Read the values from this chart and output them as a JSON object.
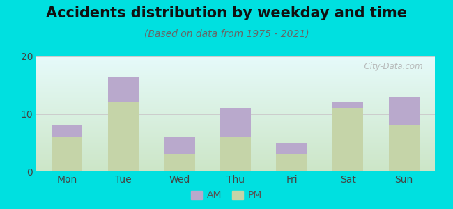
{
  "title": "Accidents distribution by weekday and time",
  "subtitle": "(Based on data from 1975 - 2021)",
  "categories": [
    "Mon",
    "Tue",
    "Wed",
    "Thu",
    "Fri",
    "Sat",
    "Sun"
  ],
  "pm_values": [
    6,
    12,
    3,
    6,
    3,
    11,
    8
  ],
  "am_values": [
    2,
    4.5,
    3,
    5,
    2,
    1,
    5
  ],
  "am_color": "#b9a9cc",
  "pm_color": "#c5d4a8",
  "background_color": "#00e0e0",
  "ylim": [
    0,
    20
  ],
  "yticks": [
    0,
    10,
    20
  ],
  "grid_color": "#cccccc",
  "title_fontsize": 15,
  "subtitle_fontsize": 10,
  "tick_fontsize": 10,
  "legend_fontsize": 10,
  "bar_width": 0.55,
  "watermark_text": "  City-Data.com"
}
